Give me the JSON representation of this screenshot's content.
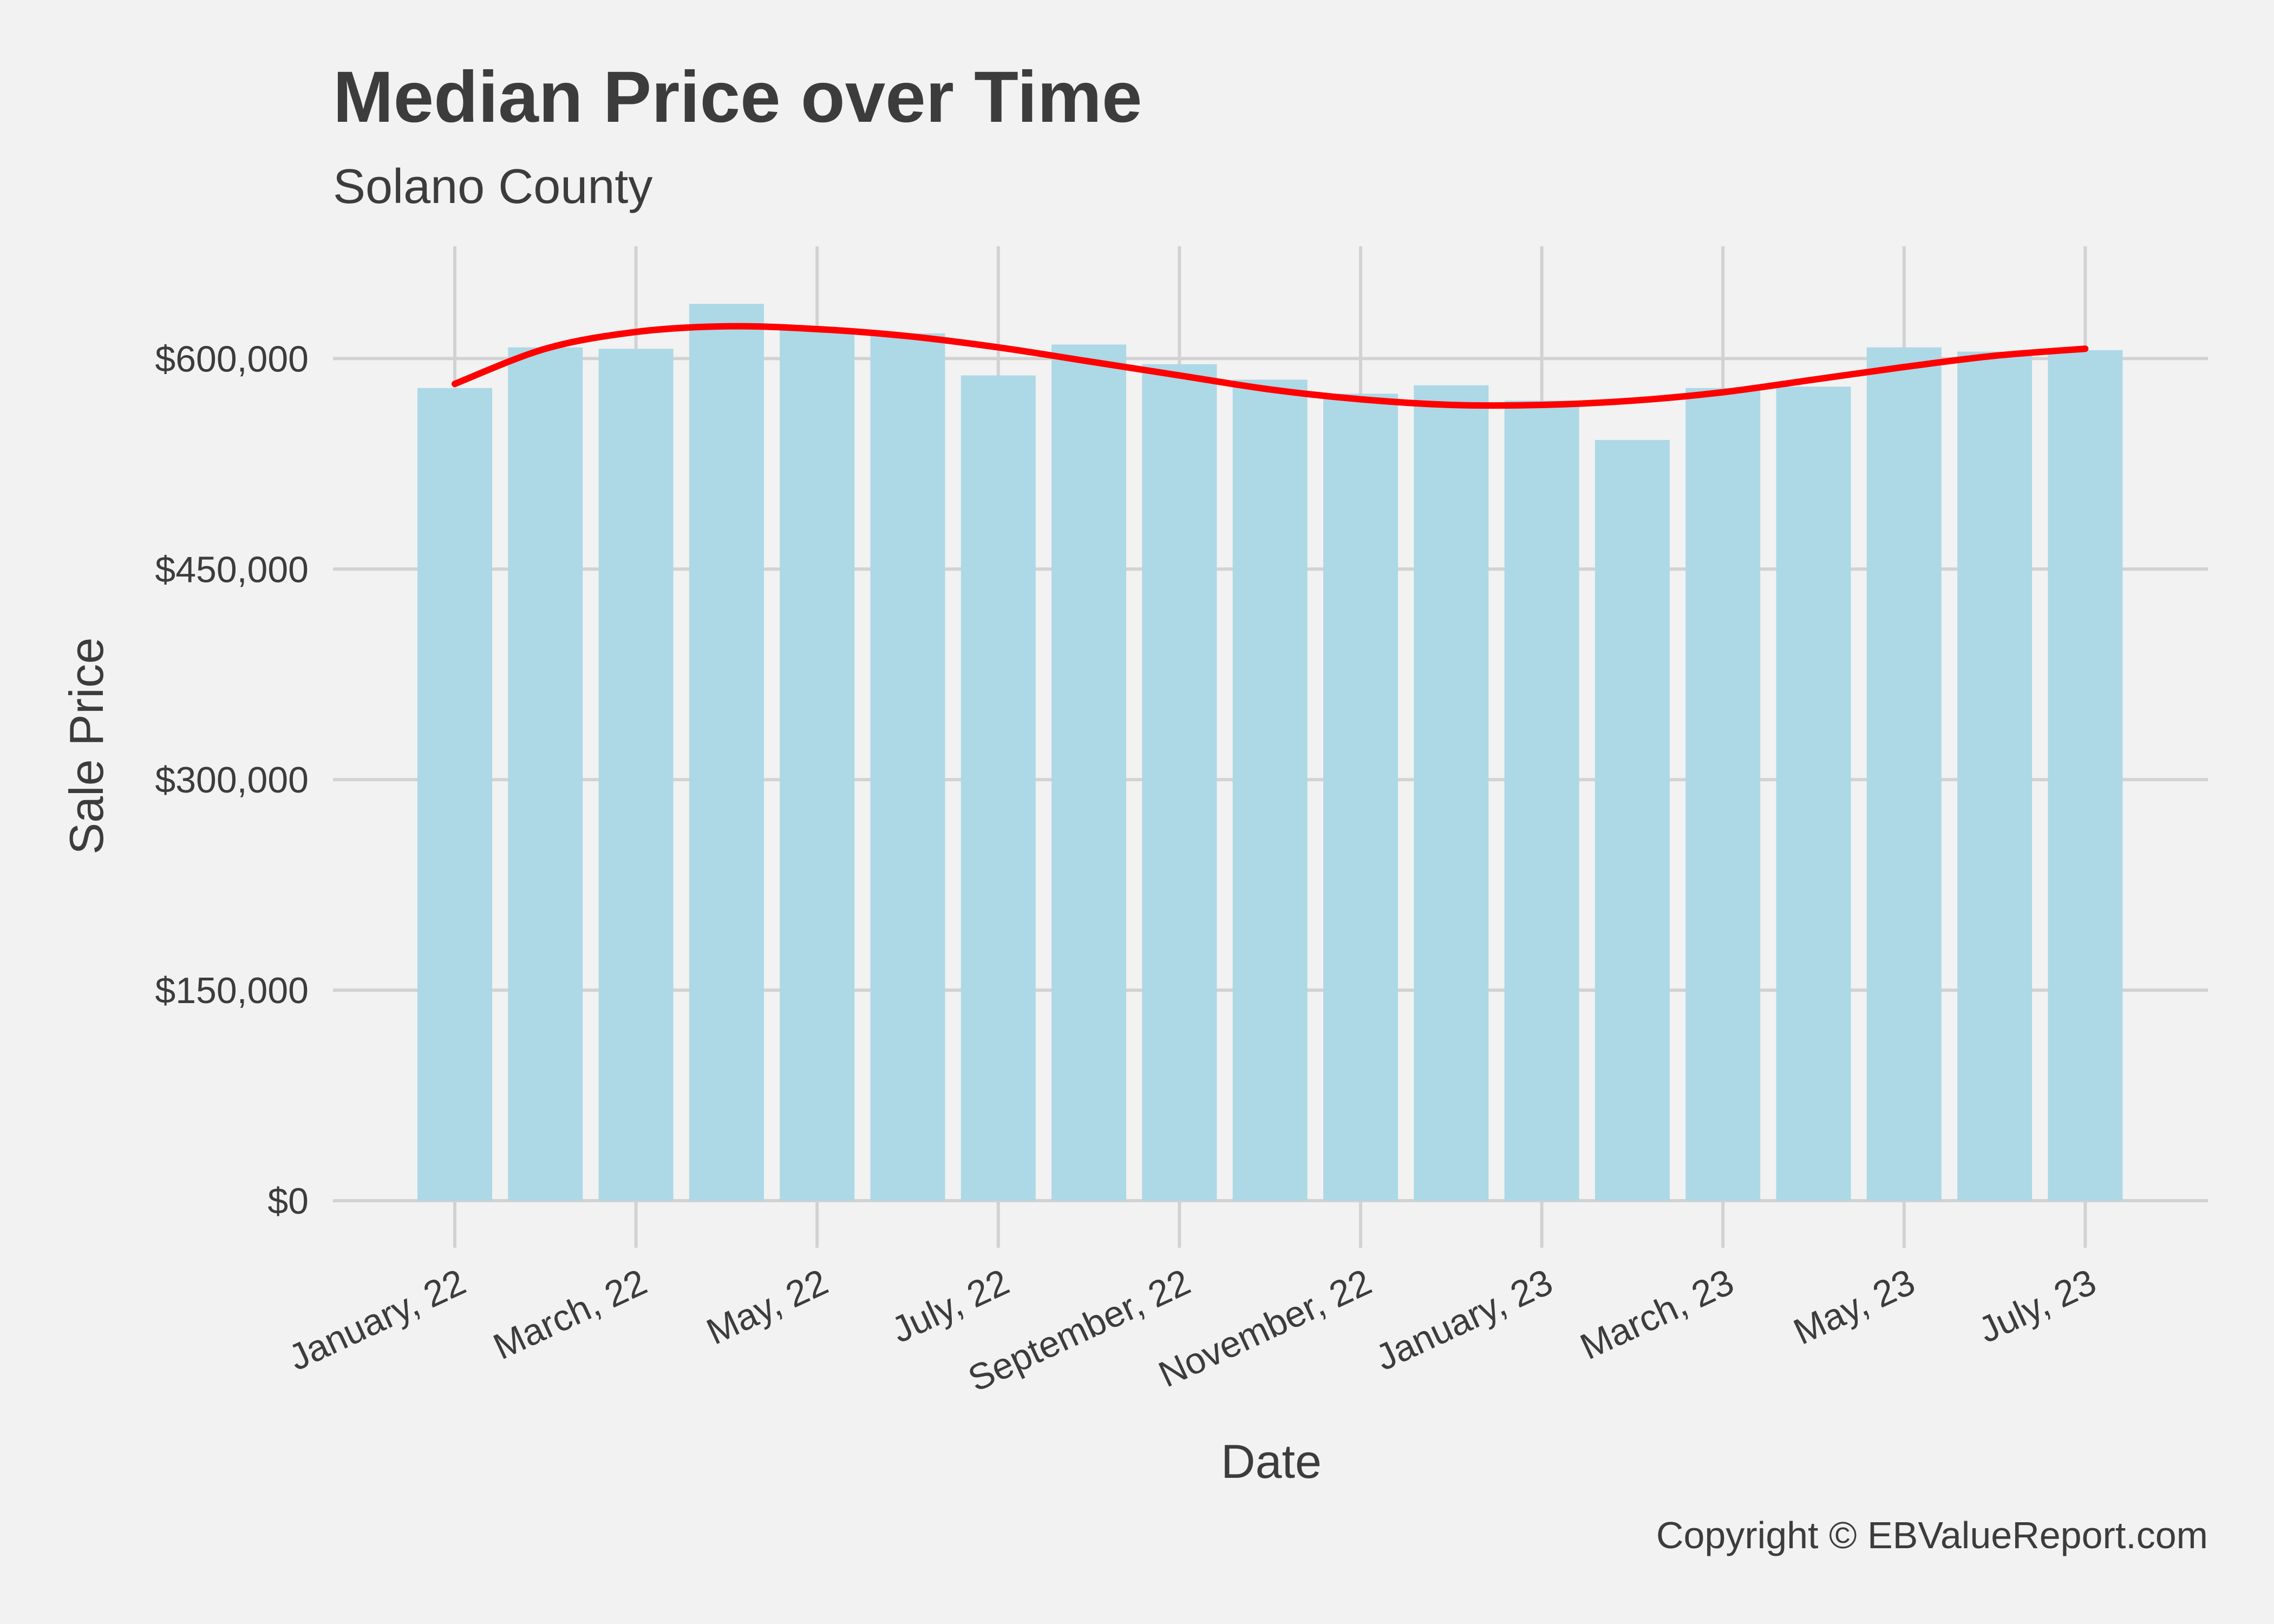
{
  "chart_data": {
    "type": "bar",
    "title": "Median Price over Time",
    "subtitle": "Solano County",
    "xlabel": "Date",
    "ylabel": "Sale Price",
    "caption": "Copyright  © EBValueReport.com",
    "ylim": [
      0,
      680000
    ],
    "yticks": [
      0,
      150000,
      300000,
      450000,
      600000
    ],
    "ytick_labels": [
      "$0",
      "$150,000",
      "$300,000",
      "$450,000",
      "$600,000"
    ],
    "xtick_labels": [
      "January, 22",
      "March, 22",
      "May, 22",
      "July, 22",
      "September, 22",
      "November, 22",
      "January, 23",
      "March, 23",
      "May, 23",
      "July, 23"
    ],
    "categories": [
      "2022-01",
      "2022-02",
      "2022-03",
      "2022-04",
      "2022-05",
      "2022-06",
      "2022-07",
      "2022-08",
      "2022-09",
      "2022-10",
      "2022-11",
      "2022-12",
      "2023-01",
      "2023-02",
      "2023-03",
      "2023-04",
      "2023-05",
      "2023-06",
      "2023-07"
    ],
    "values": [
      579000,
      608000,
      607000,
      639000,
      621000,
      618000,
      588000,
      610000,
      596000,
      585000,
      575000,
      581000,
      570000,
      542000,
      579000,
      580000,
      608000,
      605000,
      606000
    ],
    "smooth_trend": {
      "color": "#ff0000",
      "values": [
        582000,
        607000,
        619000,
        623000,
        621000,
        616000,
        608000,
        598000,
        588000,
        578000,
        571000,
        567000,
        567000,
        570000,
        576000,
        585000,
        594000,
        602000,
        607000
      ]
    },
    "bar_color": "#add8e6",
    "grid": true
  }
}
